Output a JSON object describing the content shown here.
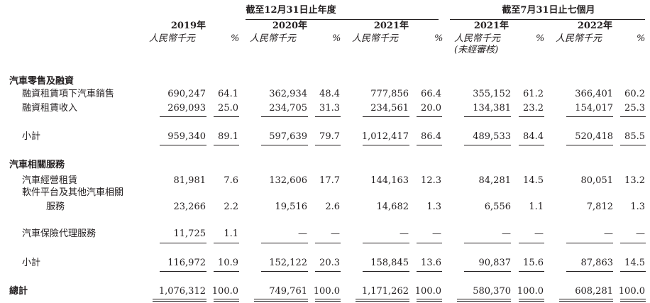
{
  "header": {
    "group_full_year": "截至12月31日止年度",
    "group_seven_months": "截至7月31日止七個月",
    "years": [
      "2019年",
      "2020年",
      "2021年",
      "2021年",
      "2022年"
    ],
    "unit_label": "人民幣千元",
    "pct_label": "%",
    "unaudited": "(未經審核)"
  },
  "sections": [
    {
      "title": "汽車零售及融資",
      "rows": [
        {
          "label": "融資租賃項下汽車銷售",
          "values": [
            "690,247",
            "64.1",
            "362,934",
            "48.4",
            "777,856",
            "66.4",
            "355,152",
            "61.2",
            "366,401",
            "60.2"
          ]
        },
        {
          "label": "融資租賃收入",
          "values": [
            "269,093",
            "25.0",
            "234,705",
            "31.3",
            "234,561",
            "20.0",
            "134,381",
            "23.2",
            "154,017",
            "25.3"
          ]
        }
      ],
      "subtotal": {
        "label": "小計",
        "values": [
          "959,340",
          "89.1",
          "597,639",
          "79.7",
          "1,012,417",
          "86.4",
          "489,533",
          "84.4",
          "520,418",
          "85.5"
        ]
      }
    },
    {
      "title": "汽車相關服務",
      "rows": [
        {
          "label": "汽車經營租賃",
          "values": [
            "81,981",
            "7.6",
            "132,606",
            "17.7",
            "144,163",
            "12.3",
            "84,281",
            "14.5",
            "80,051",
            "13.2"
          ]
        },
        {
          "label": "軟件平台及其他汽車相關",
          "label2": "服務",
          "values": [
            "23,266",
            "2.2",
            "19,516",
            "2.6",
            "14,682",
            "1.3",
            "6,556",
            "1.1",
            "7,812",
            "1.3"
          ]
        },
        {
          "label": "汽車保險代理服務",
          "values": [
            "11,725",
            "1.1",
            "—",
            "—",
            "—",
            "—",
            "—",
            "—",
            "—",
            "—"
          ]
        }
      ],
      "subtotal": {
        "label": "小計",
        "values": [
          "116,972",
          "10.9",
          "152,122",
          "20.3",
          "158,845",
          "13.6",
          "90,837",
          "15.6",
          "87,863",
          "14.5"
        ]
      }
    }
  ],
  "total": {
    "label": "總計",
    "values": [
      "1,076,312",
      "100.0",
      "749,761",
      "100.0",
      "1,171,262",
      "100.0",
      "580,370",
      "100.0",
      "608,281",
      "100.0"
    ]
  }
}
